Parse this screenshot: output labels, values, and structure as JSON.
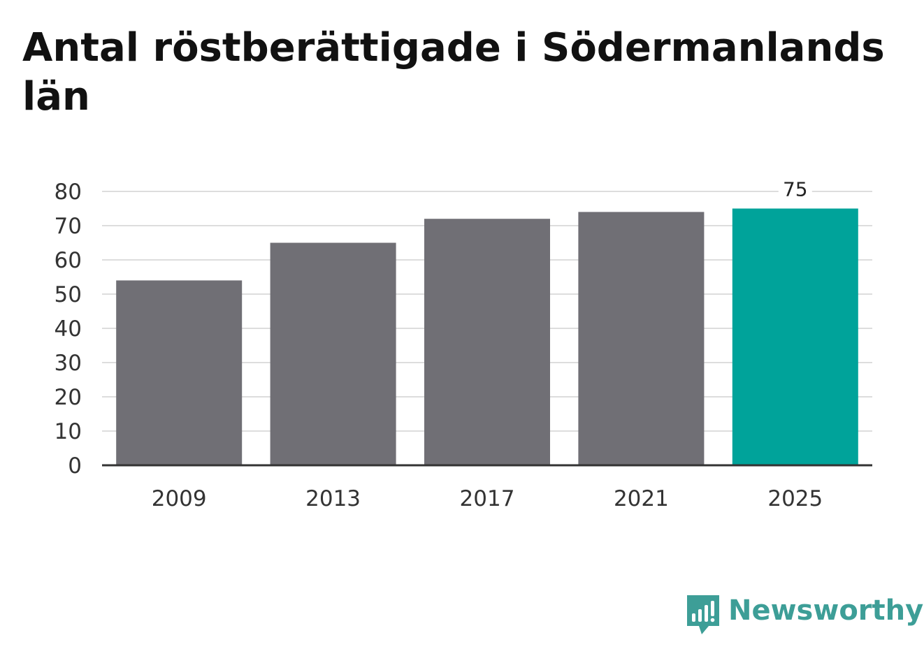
{
  "title": "Antal röstberättigade i Södermanlands län",
  "brand": {
    "name": "Newsworthy",
    "icon": "bar-chart-speech-bubble-icon",
    "color": "#3d9e97"
  },
  "colors": {
    "bar_default": "#706f75",
    "bar_highlight": "#00a39a",
    "grid": "#dddddd",
    "axis": "#333333"
  },
  "chart_data": {
    "type": "bar",
    "categories": [
      "2009",
      "2013",
      "2017",
      "2021",
      "2025"
    ],
    "values": [
      54,
      65,
      72,
      74,
      75
    ],
    "highlight_index": 4,
    "data_labels": [
      {
        "index": 4,
        "text": "75"
      }
    ],
    "ylim": [
      0,
      80
    ],
    "yticks": [
      0,
      10,
      20,
      30,
      40,
      50,
      60,
      70,
      80
    ],
    "grid": true,
    "legend": "none"
  }
}
